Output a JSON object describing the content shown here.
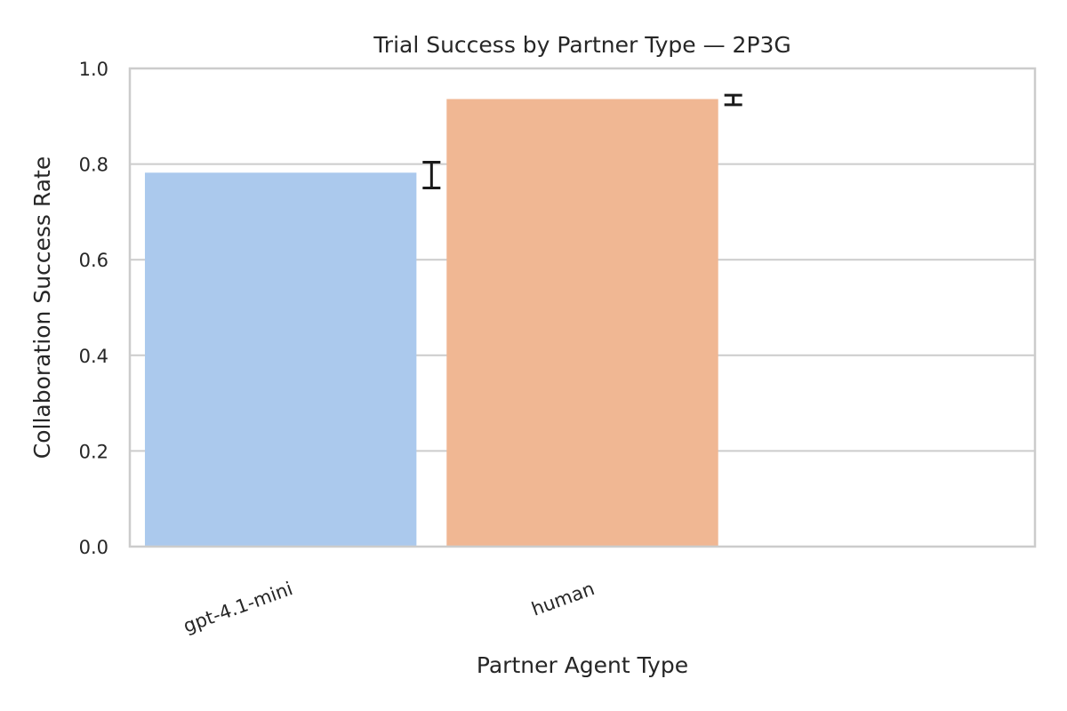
{
  "chart_data": {
    "type": "bar",
    "title": "Trial Success by Partner Type — 2P3G",
    "xlabel": "Partner Agent Type",
    "ylabel": "Collaboration Success Rate",
    "categories": [
      "gpt-4.1-mini",
      "human"
    ],
    "values": [
      0.782,
      0.936
    ],
    "colors": [
      "#abc9ed",
      "#f0b793"
    ],
    "error_bars": [
      {
        "center": 0.776,
        "low": 0.75,
        "high": 0.804
      },
      {
        "center": 0.934,
        "low": 0.924,
        "high": 0.944
      }
    ],
    "ylim": [
      0,
      1.0
    ],
    "yticks": [
      0.0,
      0.2,
      0.4,
      0.6,
      0.8,
      1.0
    ],
    "ytick_labels": [
      "0.0",
      "0.2",
      "0.4",
      "0.6",
      "0.8",
      "1.0"
    ],
    "grid": true,
    "legend": "none"
  }
}
